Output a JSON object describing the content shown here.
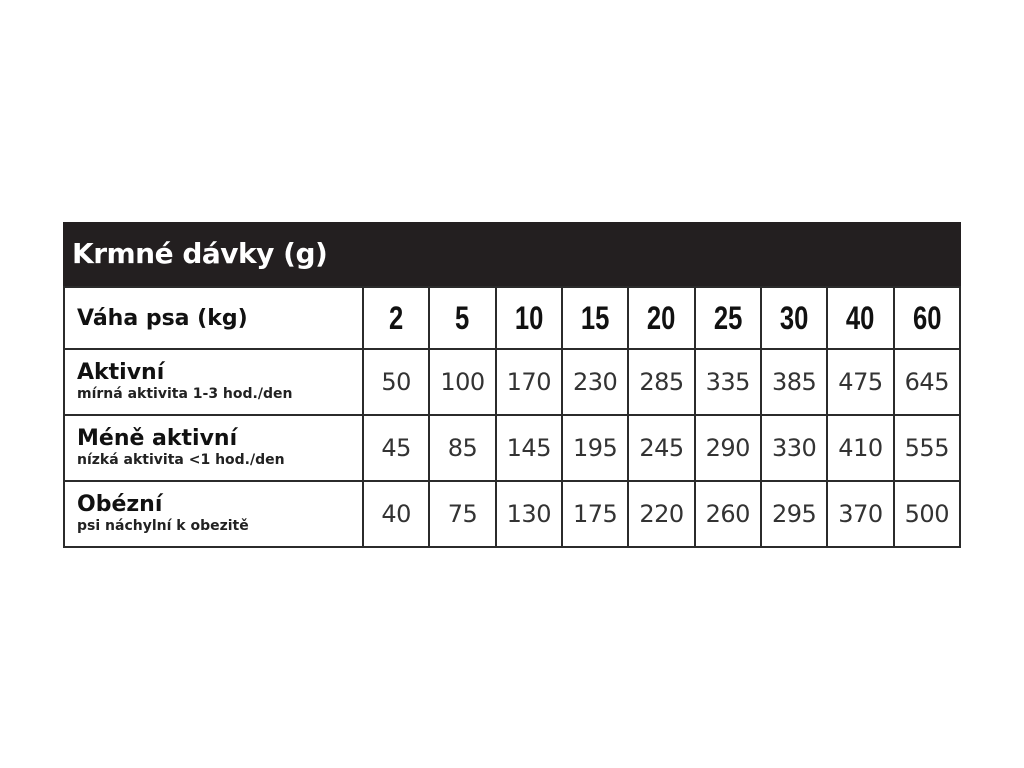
{
  "title": "Krmné dávky (g)",
  "header": {
    "label": "Váha psa (kg)",
    "weights": [
      "2",
      "5",
      "10",
      "15",
      "20",
      "25",
      "30",
      "40",
      "60"
    ]
  },
  "rows": [
    {
      "name": "Aktivní",
      "desc": "mírná aktivita 1-3 hod./den",
      "values": [
        "50",
        "100",
        "170",
        "230",
        "285",
        "335",
        "385",
        "475",
        "645"
      ]
    },
    {
      "name": "Méně aktivní",
      "desc": "nízká aktivita <1 hod./den",
      "values": [
        "45",
        "85",
        "145",
        "195",
        "245",
        "290",
        "330",
        "410",
        "555"
      ]
    },
    {
      "name": "Obézní",
      "desc": "psi náchylní k obezitě",
      "values": [
        "40",
        "75",
        "130",
        "175",
        "220",
        "260",
        "295",
        "370",
        "500"
      ]
    }
  ],
  "colors": {
    "title_bg": "#231f20",
    "border": "#2b2b2b"
  }
}
